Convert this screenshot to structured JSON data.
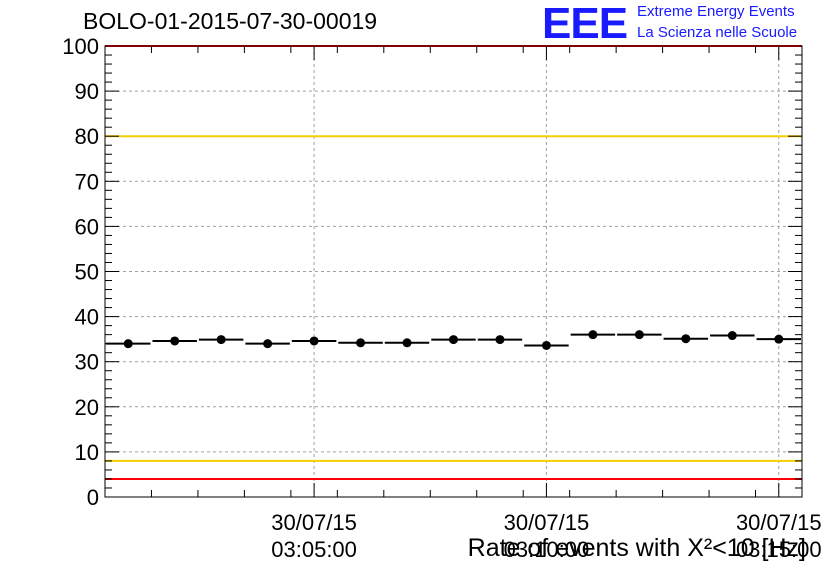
{
  "chart_data": {
    "type": "scatter",
    "title": "BOLO-01-2015-07-30-00019",
    "xlabel": "Rate of events with X²<10 [Hz]",
    "ylabel": "",
    "ylim": [
      0,
      100
    ],
    "yticks": [
      0,
      10,
      20,
      30,
      40,
      50,
      60,
      70,
      80,
      90,
      100
    ],
    "xticks": [
      {
        "date": "30/07/15",
        "time": "03:05:00",
        "x": 4.5
      },
      {
        "date": "30/07/15",
        "time": "03:10:00",
        "x": 9.5
      },
      {
        "date": "30/07/15",
        "time": "03:15:00",
        "x": 14.5
      }
    ],
    "xlim": [
      0,
      15
    ],
    "grid": true,
    "series": [
      {
        "x": [
          0.5,
          1.5,
          2.5,
          3.5,
          4.5,
          5.5,
          6.5,
          7.5,
          8.5,
          9.5,
          10.5,
          11.5,
          12.5,
          13.5,
          14.5
        ],
        "values": [
          34.0,
          34.6,
          34.9,
          34.0,
          34.6,
          34.2,
          34.2,
          34.9,
          34.9,
          33.6,
          36.0,
          36.0,
          35.1,
          35.8,
          35.0
        ],
        "color": "#000000"
      }
    ],
    "reference_lines": [
      {
        "y": 100,
        "color": "#ff0000"
      },
      {
        "y": 80,
        "color": "#f5d000"
      },
      {
        "y": 8,
        "color": "#f5d000"
      },
      {
        "y": 4,
        "color": "#ff0000"
      }
    ]
  },
  "logo": {
    "mark": "EEE",
    "line1": "Extreme Energy Events",
    "line2": "La Scienza nelle Scuole"
  }
}
